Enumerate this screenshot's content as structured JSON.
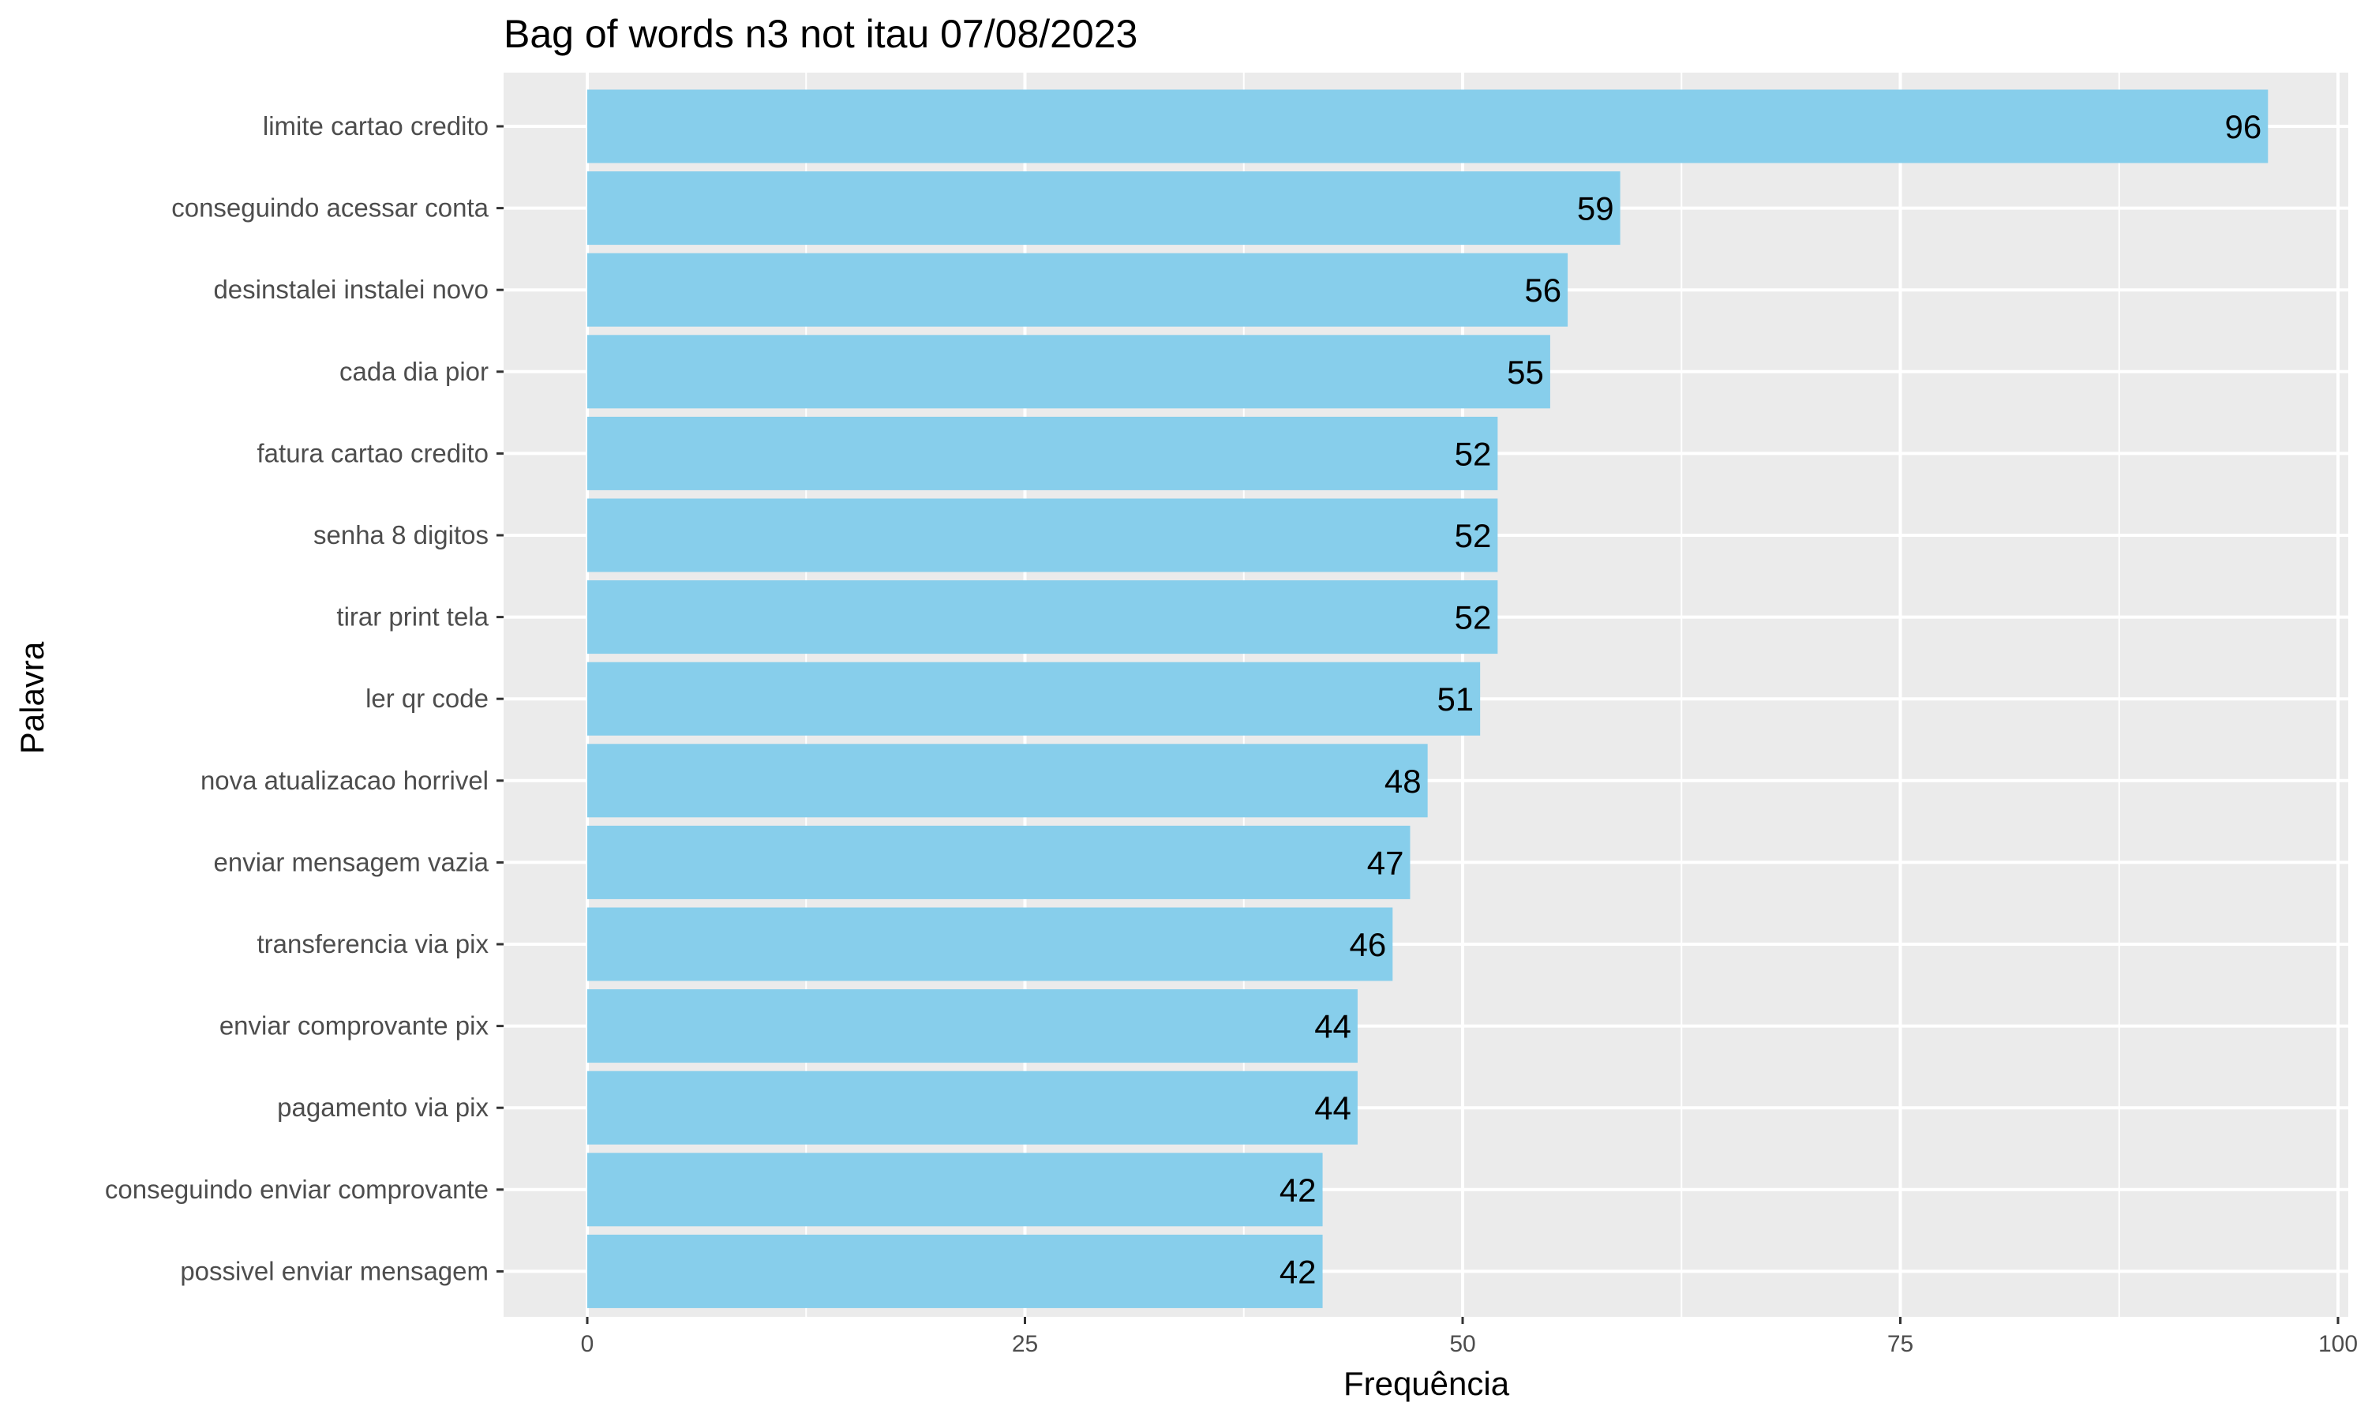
{
  "chart_data": {
    "type": "bar",
    "orientation": "horizontal",
    "title": "Bag of words n3 not itau 07/08/2023",
    "xlabel": "Frequência",
    "ylabel": "Palavra",
    "categories": [
      "limite cartao credito",
      "conseguindo acessar conta",
      "desinstalei instalei novo",
      "cada dia pior",
      "fatura cartao credito",
      "senha 8 digitos",
      "tirar print tela",
      "ler qr code",
      "nova atualizacao horrivel",
      "enviar mensagem vazia",
      "transferencia via pix",
      "enviar comprovante pix",
      "pagamento via pix",
      "conseguindo enviar comprovante",
      "possivel enviar mensagem"
    ],
    "values": [
      96,
      59,
      56,
      55,
      52,
      52,
      52,
      51,
      48,
      47,
      46,
      44,
      44,
      42,
      42
    ],
    "xlim": [
      0,
      100
    ],
    "xticks": [
      0,
      25,
      50,
      75,
      100
    ],
    "grid": true,
    "colors": {
      "bar": "#87CEEB",
      "panel": "#EBEBEB",
      "grid": "#FFFFFF"
    }
  }
}
